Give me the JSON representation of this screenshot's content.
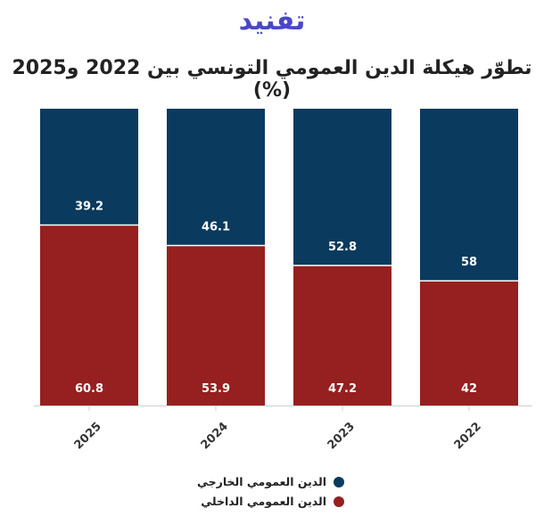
{
  "logo_text": "تفنيد",
  "colors": {
    "external": "#0b3a5f",
    "domestic": "#961f1f"
  },
  "chart_data": {
    "type": "bar",
    "stacked": true,
    "title": "تطوّر هيكلة الدين العمومي التونسي بين 2022 و2025 (%)",
    "categories": [
      "2025",
      "2024",
      "2023",
      "2022"
    ],
    "series": [
      {
        "name": "الدين العمومي الداخلي",
        "values": [
          60.8,
          53.9,
          47.2,
          42
        ],
        "color": "#961f1f"
      },
      {
        "name": "الدين العمومي الخارجي",
        "values": [
          39.2,
          46.1,
          52.8,
          58
        ],
        "color": "#0b3a5f"
      }
    ],
    "ylim": [
      0,
      100
    ],
    "legend_position": "bottom",
    "grid": false
  }
}
